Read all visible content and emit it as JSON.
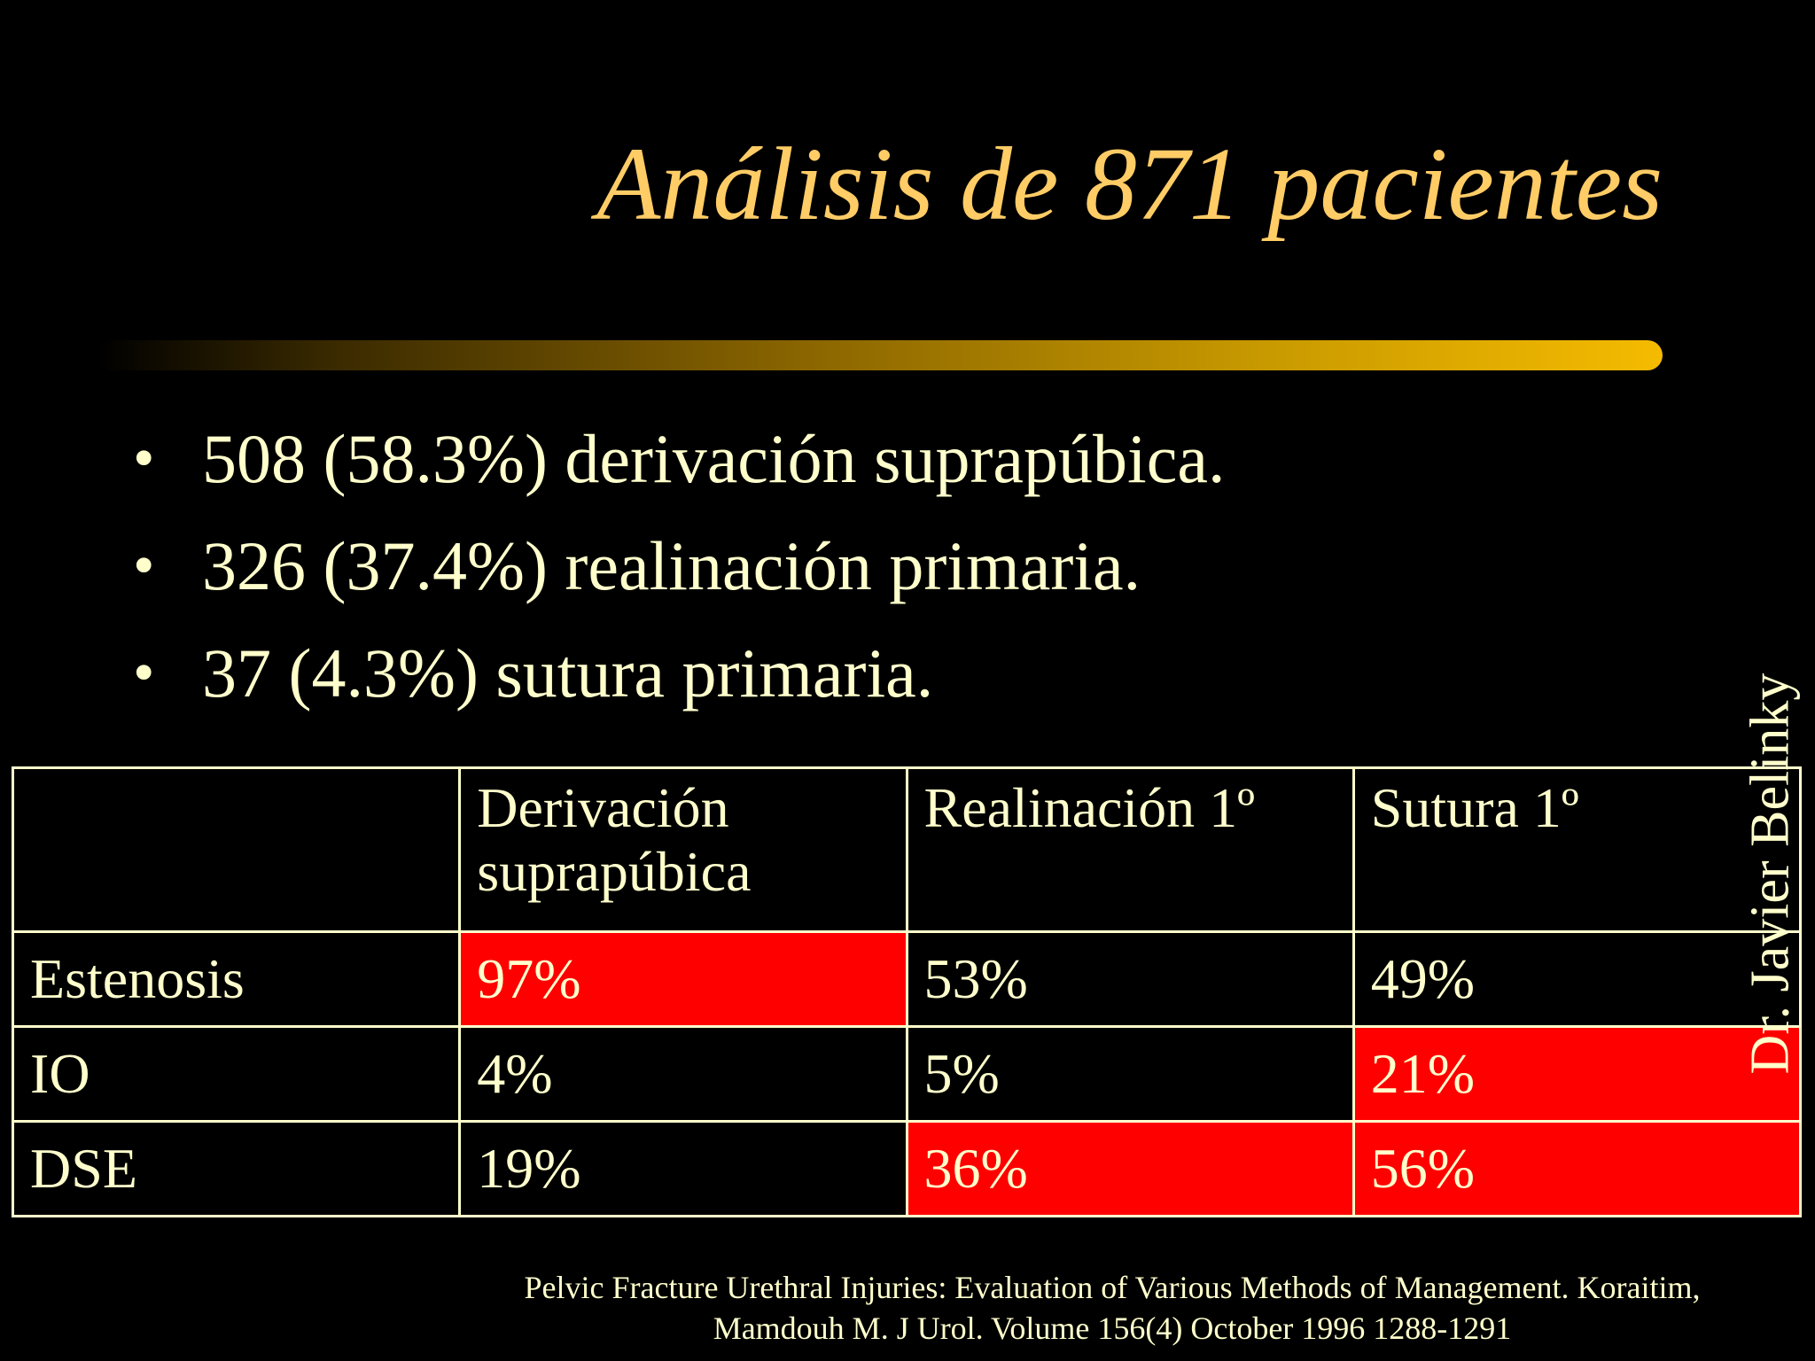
{
  "title": "Análisis de 871 pacientes",
  "bullets": [
    "508 (58.3%) derivación suprapúbica.",
    "326 (37.4%) realinación primaria.",
    "37 (4.3%) sutura primaria."
  ],
  "table": {
    "header": [
      "Derivación suprapúbica",
      "Realinación 1º",
      "Sutura 1º"
    ],
    "rows": [
      [
        "Estenosis",
        "97%",
        "53%",
        "49%"
      ],
      [
        "IO",
        "4%",
        "5%",
        "21%"
      ],
      [
        "DSE",
        "19%",
        "36%",
        "56%"
      ]
    ]
  },
  "author": "Dr. Javier Belinky",
  "citation": [
    "Pelvic Fracture Urethral Injuries: Evaluation of Various Methods of Management. Koraitim,",
    "Mamdouh M. J Urol. Volume 156(4) October 1996 1288-1291"
  ]
}
